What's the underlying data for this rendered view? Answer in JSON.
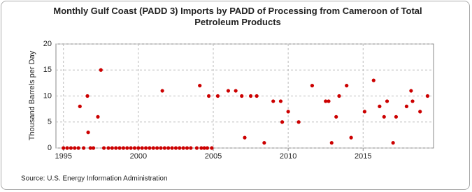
{
  "chart_data": {
    "type": "scatter",
    "title": "Monthly Gulf Coast (PADD 3) Imports by PADD of Processing from Cameroon of Total Petroleum Products",
    "y_label": "Thousand Barrels per Day",
    "source": "Source: U.S. Energy Information Administration",
    "color": "#cc0000",
    "grid": true,
    "xlim": [
      1994.5,
      2019.7
    ],
    "xticks": [
      1995,
      2000,
      2005,
      2010,
      2015
    ],
    "ylim": [
      0,
      20
    ],
    "yticks": [
      0,
      5,
      10,
      15,
      20
    ],
    "x": [
      1995,
      1995.25,
      1995.5,
      1995.75,
      1996.0,
      1996.1,
      1996.35,
      1996.6,
      1996.65,
      1996.8,
      1997.0,
      1997.3,
      1997.5,
      1997.7,
      1998.0,
      1998.25,
      1998.5,
      1998.75,
      1999.0,
      1999.25,
      1999.5,
      1999.75,
      2000.0,
      2000.25,
      2000.5,
      2000.75,
      2001.0,
      2001.25,
      2001.5,
      2001.6,
      2001.75,
      2002.0,
      2002.25,
      2002.5,
      2002.75,
      2003.0,
      2003.25,
      2003.5,
      2003.9,
      2004.1,
      2004.2,
      2004.4,
      2004.6,
      2004.7,
      2004.9,
      2005.3,
      2006.0,
      2006.5,
      2006.9,
      2007.1,
      2007.5,
      2007.9,
      2008.4,
      2009.0,
      2009.5,
      2009.6,
      2010.0,
      2010.7,
      2011.6,
      2012.5,
      2012.7,
      2012.9,
      2013.2,
      2013.4,
      2013.9,
      2014.2,
      2015.1,
      2015.7,
      2016.1,
      2016.4,
      2016.6,
      2017.0,
      2017.2,
      2017.9,
      2018.2,
      2018.3,
      2018.8,
      2019.3
    ],
    "values": [
      0,
      0,
      0,
      0,
      0,
      8,
      0,
      10,
      3,
      0,
      0,
      6,
      15,
      0,
      0,
      0,
      0,
      0,
      0,
      0,
      0,
      0,
      0,
      0,
      0,
      0,
      0,
      0,
      0,
      11,
      0,
      0,
      0,
      0,
      0,
      0,
      0,
      0,
      0,
      12,
      0,
      0,
      0,
      10,
      0,
      10,
      11,
      11,
      10,
      2,
      10,
      10,
      1,
      9,
      9,
      5,
      7,
      5,
      12,
      9,
      9,
      1,
      6,
      10,
      12,
      2,
      7,
      13,
      8,
      6,
      9,
      1,
      6,
      8,
      11,
      9,
      7,
      10
    ]
  }
}
